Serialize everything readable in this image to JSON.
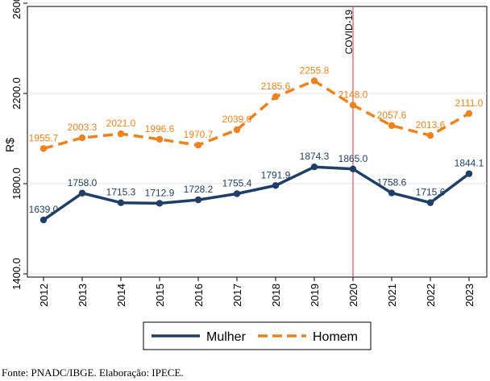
{
  "chart_data": {
    "type": "line",
    "categories": [
      "2012",
      "2013",
      "2014",
      "2015",
      "2016",
      "2017",
      "2018",
      "2019",
      "2020",
      "2021",
      "2022",
      "2023"
    ],
    "series": [
      {
        "name": "Mulher",
        "color": "#1f3f66",
        "style": "solid",
        "values": [
          1639.0,
          1758.0,
          1715.3,
          1712.9,
          1728.2,
          1755.4,
          1791.9,
          1874.3,
          1865.0,
          1758.6,
          1715.6,
          1844.1
        ],
        "labels": [
          "1639.0",
          "1758.0",
          "1715.3",
          "1712.9",
          "1728.2",
          "1755.4",
          "1791.9",
          "1874.3",
          "1865.0",
          "1758.6",
          "1715.6",
          "1844.1"
        ]
      },
      {
        "name": "Homem",
        "color": "#f0821e",
        "style": "dashed",
        "values": [
          1955.7,
          2003.3,
          2021.0,
          1996.6,
          1970.7,
          2039.0,
          2185.6,
          2255.8,
          2148.0,
          2057.6,
          2013.6,
          2111.0
        ],
        "labels": [
          "1955.7",
          "2003.3",
          "2021.0",
          "1996.6",
          "1970.7",
          "2039.0",
          "2185.6",
          "2255.8",
          "2148.0",
          "2057.6",
          "2013.6",
          "2111.0"
        ]
      }
    ],
    "ylabel": "R$",
    "yticks": [
      "1400.0",
      "1800.0",
      "2200.0",
      "2600.0"
    ],
    "ytick_values": [
      1400,
      1800,
      2200,
      2600
    ],
    "ylim": [
      1400,
      2600
    ],
    "grid": true,
    "legend_position": "bottom",
    "annotation": {
      "x": "2020",
      "label": "COVID-19",
      "color": "#e8535b"
    }
  },
  "source_note": "Fonte: PNADC/IBGE. Elaboração: IPECE."
}
